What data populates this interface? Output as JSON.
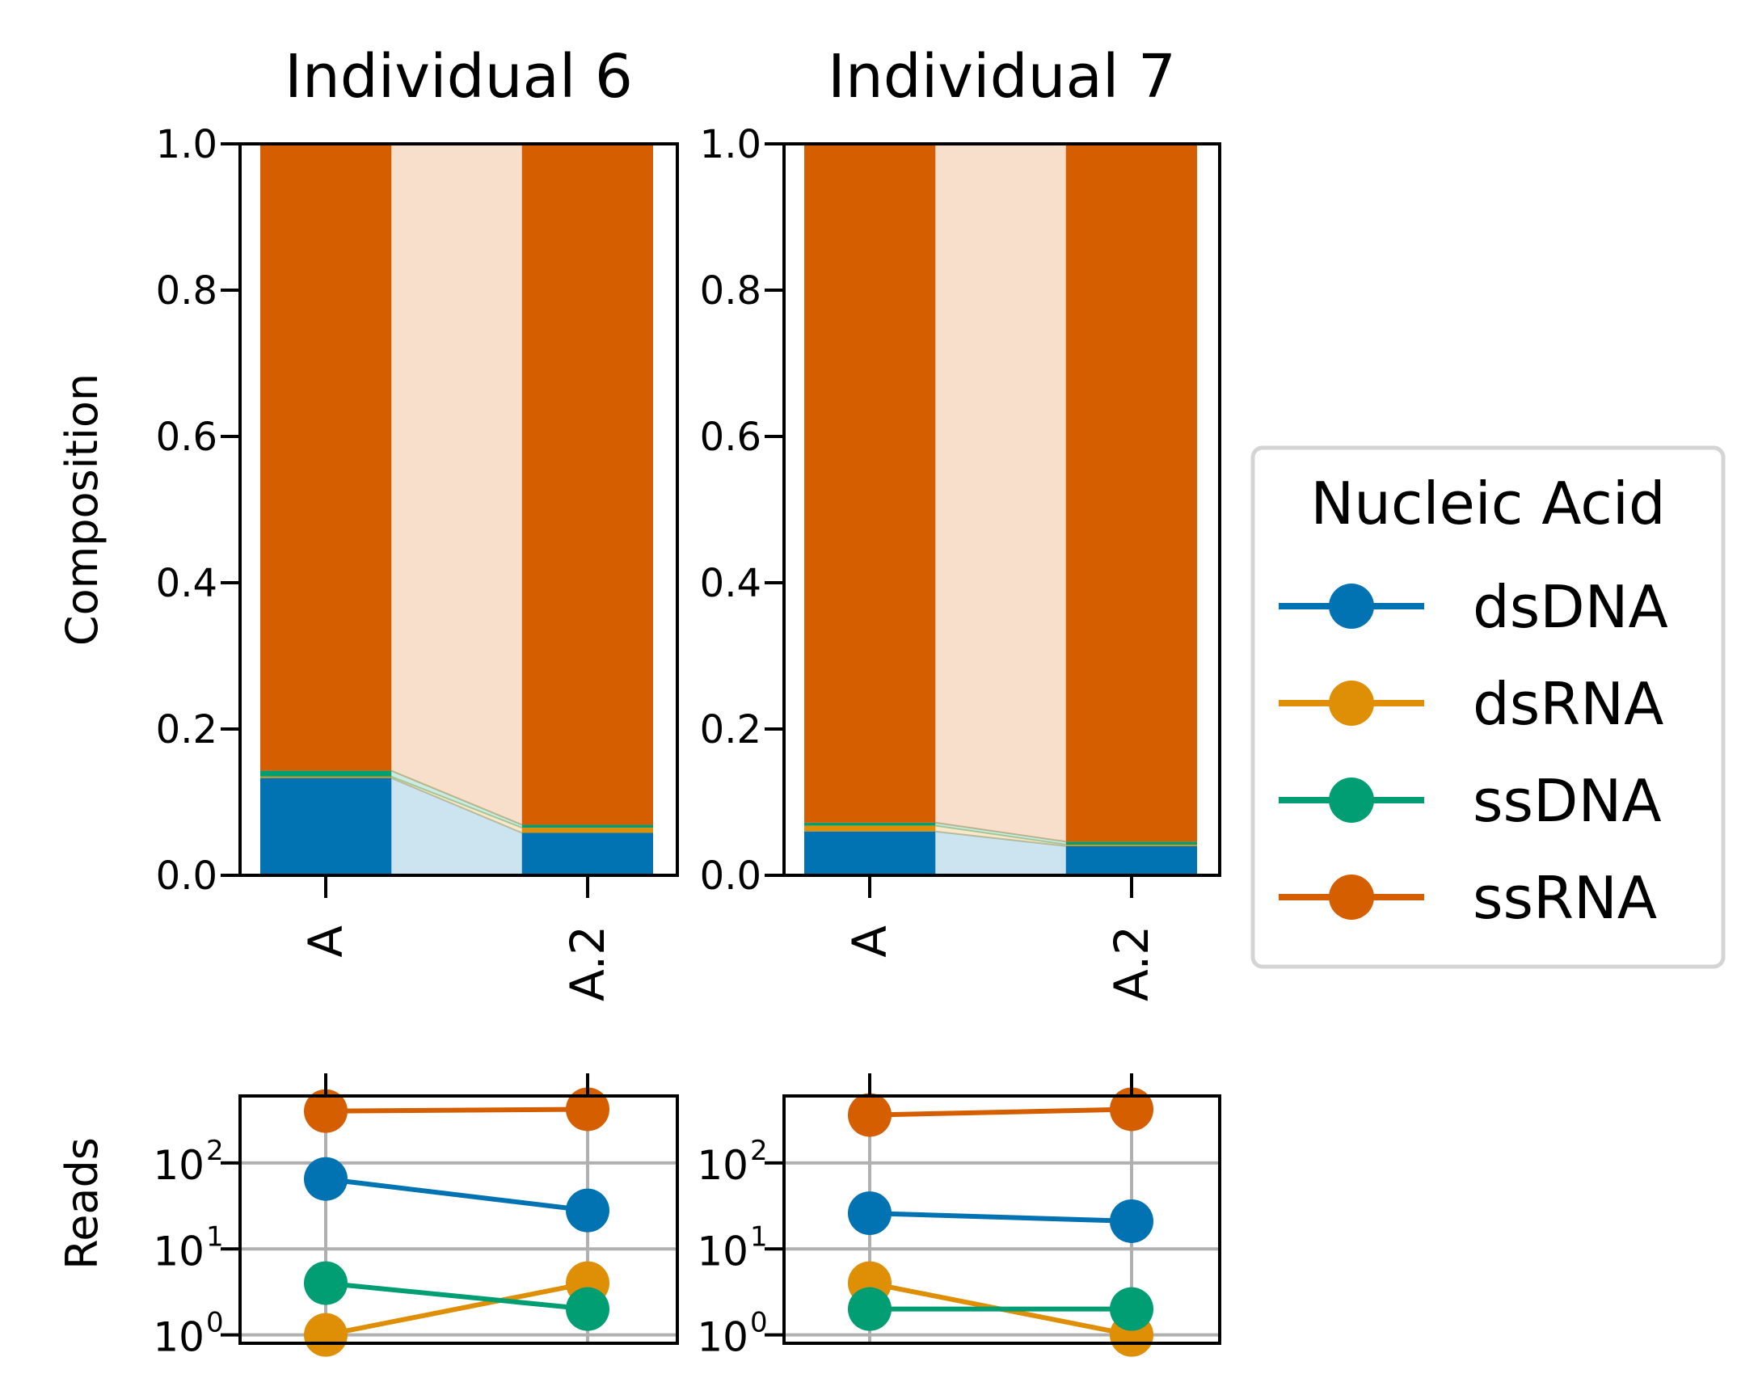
{
  "chart_data": {
    "type": "bar",
    "legend": {
      "title": "Nucleic Acid",
      "placement": "right",
      "entries": [
        "dsDNA",
        "dsRNA",
        "ssDNA",
        "ssRNA"
      ]
    },
    "colors": {
      "dsDNA": "#0173b2",
      "dsRNA": "#de8f05",
      "ssDNA": "#029e73",
      "ssRNA": "#d55e00"
    },
    "composition": {
      "ylabel": "Composition",
      "ylim": [
        0,
        1
      ],
      "yticks": [
        "0.0",
        "0.2",
        "0.4",
        "0.6",
        "0.8",
        "1.0"
      ],
      "panels": [
        {
          "title": "Individual 6",
          "categories": [
            "A",
            "A.2"
          ],
          "stacked": true,
          "series": [
            {
              "name": "dsDNA",
              "values": [
                0.133,
                0.058
              ]
            },
            {
              "name": "dsRNA",
              "values": [
                0.002,
                0.007
              ]
            },
            {
              "name": "ssDNA",
              "values": [
                0.008,
                0.004
              ]
            },
            {
              "name": "ssRNA",
              "values": [
                0.857,
                0.931
              ]
            }
          ]
        },
        {
          "title": "Individual 7",
          "categories": [
            "A",
            "A.2"
          ],
          "stacked": true,
          "series": [
            {
              "name": "dsDNA",
              "values": [
                0.06,
                0.04
              ]
            },
            {
              "name": "dsRNA",
              "values": [
                0.008,
                0.002
              ]
            },
            {
              "name": "ssDNA",
              "values": [
                0.004,
                0.004
              ]
            },
            {
              "name": "ssRNA",
              "values": [
                0.928,
                0.954
              ]
            }
          ]
        }
      ]
    },
    "reads": {
      "ylabel": "Reads",
      "yscale": "log",
      "ylim": [
        0.8,
        600
      ],
      "yticks": [
        {
          "base": "10",
          "exp": "0"
        },
        {
          "base": "10",
          "exp": "1"
        },
        {
          "base": "10",
          "exp": "2"
        }
      ],
      "grid": true,
      "panels": [
        {
          "categories": [
            "A",
            "A.2"
          ],
          "series": [
            {
              "name": "dsDNA",
              "values": [
                65,
                28
              ]
            },
            {
              "name": "dsRNA",
              "values": [
                1,
                4
              ]
            },
            {
              "name": "ssDNA",
              "values": [
                4,
                2
              ]
            },
            {
              "name": "ssRNA",
              "values": [
                400,
                420
              ]
            }
          ]
        },
        {
          "categories": [
            "A",
            "A.2"
          ],
          "series": [
            {
              "name": "dsDNA",
              "values": [
                26,
                21
              ]
            },
            {
              "name": "dsRNA",
              "values": [
                4,
                1
              ]
            },
            {
              "name": "ssDNA",
              "values": [
                2,
                2
              ]
            },
            {
              "name": "ssRNA",
              "values": [
                360,
                420
              ]
            }
          ]
        }
      ]
    }
  }
}
